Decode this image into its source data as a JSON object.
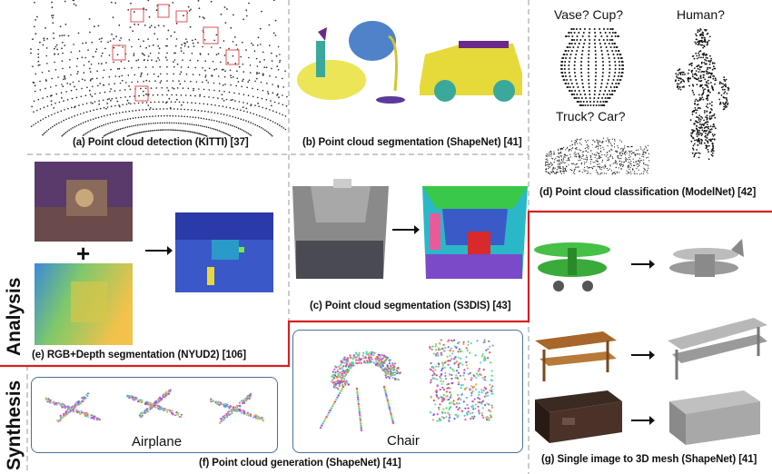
{
  "captions": {
    "a": "(a) Point cloud detection (KITTI) [37]",
    "b": "(b) Point cloud segmentation (ShapeNet) [41]",
    "c": "(c) Point cloud segmentation (S3DIS) [43]",
    "d": "(d) Point cloud classification (ModelNet) [42]",
    "e": "(e) RGB+Depth segmentation (NYUD2) [106]",
    "f": "(f) Point cloud generation (ShapeNet) [41]",
    "g": "(g) Single image to 3D mesh (ShapeNet) [41]"
  },
  "classification_questions": {
    "vase_cup": "Vase? Cup?",
    "human": "Human?",
    "truck_car": "Truck? Car?"
  },
  "rgbd": {
    "plus": "+"
  },
  "generation": {
    "airplane": "Airplane",
    "chair": "Chair"
  },
  "section_labels": {
    "analysis": "Analysis",
    "synthesis": "Synthesis"
  },
  "colors": {
    "divider_red": "#d62020",
    "dashed_gray": "#aaaaaa",
    "box_blue": "#4a6f9a"
  }
}
